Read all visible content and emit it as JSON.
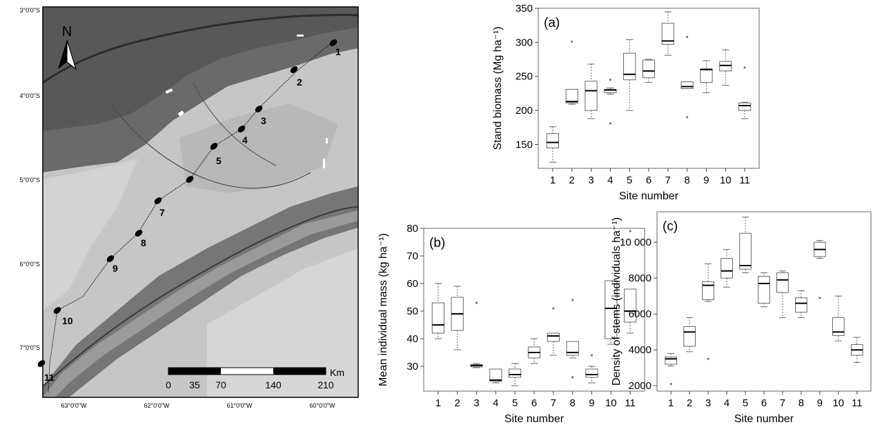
{
  "map": {
    "lat_labels": [
      "3°0'0\"S",
      "4°0'0\"S",
      "5°0'0\"S",
      "6°0'0\"S",
      "7°0'0\"S"
    ],
    "lon_labels": [
      "63°0'0\"W",
      "62°0'0\"W",
      "61°0'0\"W",
      "60°0'0\"W"
    ],
    "north": "N",
    "sites": [
      "1",
      "2",
      "3",
      "4",
      "5",
      "7",
      "8",
      "9",
      "10",
      "11"
    ],
    "scale_labels": [
      "0",
      "35",
      "70",
      "140",
      "210"
    ],
    "scale_unit": "Km",
    "colors": {
      "land_light": "#c9c9c9",
      "river": "#3a3a3a",
      "dark": "#5c5c5c"
    }
  },
  "chart_data": [
    {
      "panel": "(a)",
      "type": "box",
      "categories": [
        "1",
        "2",
        "3",
        "4",
        "5",
        "6",
        "7",
        "8",
        "9",
        "10",
        "11"
      ],
      "xlabel": "Site number",
      "ylabel": "Stand biomass (Mg ha⁻¹)",
      "ylim": [
        115,
        350
      ],
      "yticks": [
        150,
        200,
        250,
        300,
        350
      ],
      "ytick_labels": [
        "150",
        "200",
        "250",
        "300",
        "350"
      ],
      "boxes": [
        {
          "min": 124,
          "q1": 145,
          "median": 153,
          "q3": 166,
          "max": 176,
          "outliers": []
        },
        {
          "min": 209,
          "q1": 211,
          "median": 213,
          "q3": 231,
          "max": 231,
          "outliers": [
            301
          ]
        },
        {
          "min": 188,
          "q1": 200,
          "median": 229,
          "q3": 243,
          "max": 268,
          "outliers": []
        },
        {
          "min": 224,
          "q1": 226,
          "median": 230,
          "q3": 231,
          "max": 233,
          "outliers": [
            181,
            245
          ]
        },
        {
          "min": 200,
          "q1": 245,
          "median": 253,
          "q3": 284,
          "max": 304,
          "outliers": []
        },
        {
          "min": 241,
          "q1": 248,
          "median": 258,
          "q3": 274,
          "max": 275,
          "outliers": []
        },
        {
          "min": 281,
          "q1": 297,
          "median": 302,
          "q3": 328,
          "max": 345,
          "outliers": []
        },
        {
          "min": 232,
          "q1": 232,
          "median": 235,
          "q3": 242,
          "max": 242,
          "outliers": [
            190,
            308
          ]
        },
        {
          "min": 226,
          "q1": 241,
          "median": 260,
          "q3": 261,
          "max": 273,
          "outliers": []
        },
        {
          "min": 237,
          "q1": 258,
          "median": 266,
          "q3": 272,
          "max": 289,
          "outliers": []
        },
        {
          "min": 188,
          "q1": 200,
          "median": 207,
          "q3": 211,
          "max": 212,
          "outliers": [
            263
          ]
        }
      ]
    },
    {
      "panel": "(b)",
      "type": "box",
      "categories": [
        "1",
        "2",
        "3",
        "4",
        "5",
        "6",
        "7",
        "8",
        "9",
        "10",
        "11"
      ],
      "xlabel": "Site number",
      "ylabel": "Mean individual mass (kg ha⁻¹)",
      "ylim": [
        21,
        80
      ],
      "yticks": [
        30,
        40,
        50,
        60,
        70,
        80
      ],
      "ytick_labels": [
        "30",
        "40",
        "50",
        "60",
        "70",
        "80"
      ],
      "boxes": [
        {
          "min": 40,
          "q1": 42,
          "median": 45,
          "q3": 53,
          "max": 60,
          "outliers": []
        },
        {
          "min": 36,
          "q1": 43,
          "median": 49,
          "q3": 55,
          "max": 59,
          "outliers": []
        },
        {
          "min": 29.5,
          "q1": 29.8,
          "median": 30.3,
          "q3": 30.6,
          "max": 31,
          "outliers": [
            53
          ]
        },
        {
          "min": 24,
          "q1": 24.5,
          "median": 25,
          "q3": 29,
          "max": 29,
          "outliers": []
        },
        {
          "min": 23,
          "q1": 26,
          "median": 27,
          "q3": 29,
          "max": 31,
          "outliers": []
        },
        {
          "min": 31,
          "q1": 33,
          "median": 35,
          "q3": 37,
          "max": 40,
          "outliers": []
        },
        {
          "min": 34,
          "q1": 39,
          "median": 41,
          "q3": 42,
          "max": 42,
          "outliers": [
            51
          ]
        },
        {
          "min": 33,
          "q1": 34,
          "median": 35,
          "q3": 39,
          "max": 39,
          "outliers": [
            26,
            54
          ]
        },
        {
          "min": 24,
          "q1": 26,
          "median": 27,
          "q3": 29,
          "max": 30,
          "outliers": [
            34
          ]
        },
        {
          "min": 38,
          "q1": 40,
          "median": 51,
          "q3": 61,
          "max": 61,
          "outliers": []
        },
        {
          "min": 42,
          "q1": 46,
          "median": 50,
          "q3": 58,
          "max": 58,
          "outliers": [
            79
          ]
        }
      ]
    },
    {
      "panel": "(c)",
      "type": "box",
      "categories": [
        "1",
        "2",
        "3",
        "4",
        "5",
        "6",
        "7",
        "8",
        "9",
        "10",
        "11"
      ],
      "xlabel": "Site number",
      "ylabel": "Density of stems (individuals ha⁻¹)",
      "ylim": [
        1700,
        11700
      ],
      "yticks": [
        2000,
        4000,
        6000,
        8000,
        10000
      ],
      "ytick_labels": [
        "2000",
        "4000",
        "6000",
        "8000",
        "10 000"
      ],
      "boxes": [
        {
          "min": 3100,
          "q1": 3200,
          "median": 3500,
          "q3": 3600,
          "max": 3800,
          "outliers": [
            2100
          ]
        },
        {
          "min": 3900,
          "q1": 4200,
          "median": 5000,
          "q3": 5300,
          "max": 5800,
          "outliers": []
        },
        {
          "min": 6700,
          "q1": 6800,
          "median": 7600,
          "q3": 7800,
          "max": 8800,
          "outliers": [
            3500
          ]
        },
        {
          "min": 7500,
          "q1": 8000,
          "median": 8400,
          "q3": 9100,
          "max": 9600,
          "outliers": []
        },
        {
          "min": 8300,
          "q1": 8500,
          "median": 8700,
          "q3": 10500,
          "max": 11400,
          "outliers": []
        },
        {
          "min": 6400,
          "q1": 6600,
          "median": 7700,
          "q3": 8100,
          "max": 8300,
          "outliers": []
        },
        {
          "min": 5800,
          "q1": 7200,
          "median": 7900,
          "q3": 8300,
          "max": 8400,
          "outliers": []
        },
        {
          "min": 5800,
          "q1": 6100,
          "median": 6600,
          "q3": 6900,
          "max": 7300,
          "outliers": []
        },
        {
          "min": 9100,
          "q1": 9200,
          "median": 9600,
          "q3": 10000,
          "max": 10100,
          "outliers": [
            6900
          ]
        },
        {
          "min": 4500,
          "q1": 4800,
          "median": 5000,
          "q3": 5800,
          "max": 7000,
          "outliers": []
        },
        {
          "min": 3300,
          "q1": 3700,
          "median": 4000,
          "q3": 4300,
          "max": 4700,
          "outliers": []
        }
      ]
    }
  ]
}
